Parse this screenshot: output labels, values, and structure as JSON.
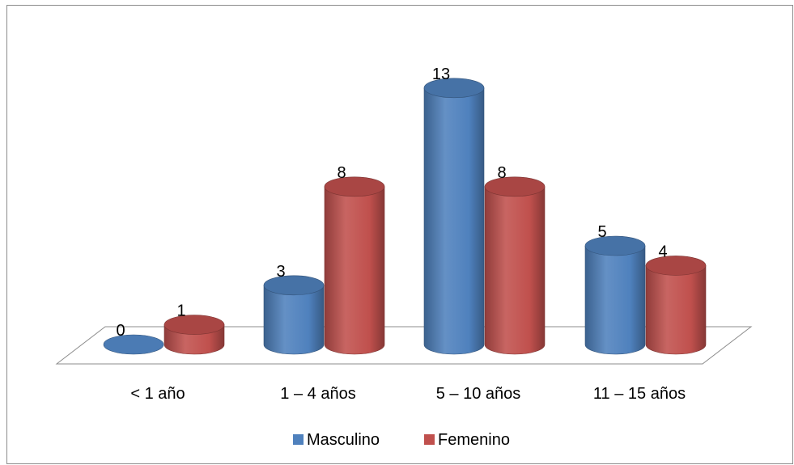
{
  "chart_data": {
    "type": "bar",
    "categories": [
      "< 1 año",
      "1 – 4 años",
      "5 – 10 años",
      "11 – 15 años"
    ],
    "series": [
      {
        "name": "Masculino",
        "values": [
          0,
          3,
          13,
          5
        ],
        "color": "#4f81bd"
      },
      {
        "name": "Femenino",
        "values": [
          1,
          8,
          8,
          4
        ],
        "color": "#c0504d"
      }
    ],
    "data_labels": true,
    "legend": "bottom",
    "style": "3d-cylinder",
    "grid": false
  }
}
